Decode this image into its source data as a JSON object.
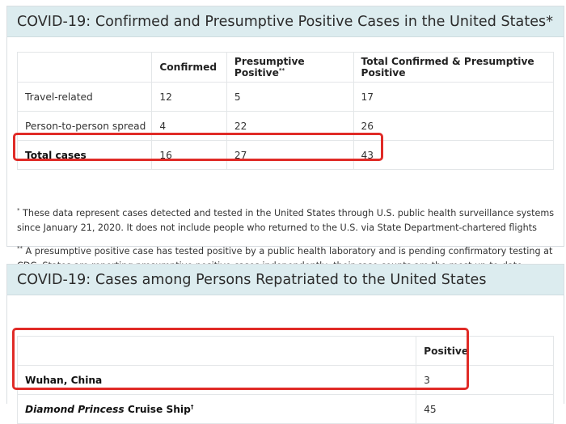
{
  "section1": {
    "title": "COVID-19: Confirmed and Presumptive Positive Cases in the United States*",
    "columns": [
      "",
      "Confirmed",
      "Presumptive Positive",
      "Total Confirmed & Presumptive Positive"
    ],
    "presumptive_marker": "**",
    "rows": [
      {
        "label": "Travel-related",
        "confirmed": "12",
        "presumptive": "5",
        "total": "17"
      },
      {
        "label": "Person-to-person spread",
        "confirmed": "4",
        "presumptive": "22",
        "total": "26"
      },
      {
        "label": "Total cases",
        "confirmed": "16",
        "presumptive": "27",
        "total": "43"
      }
    ],
    "footnote1_marker": "*",
    "footnote1": " These data represent cases detected and tested in the United States through U.S. public health surveillance systems since January 21, 2020. It does not include people who returned to the U.S. via State Department-chartered flights",
    "footnote2_marker": "**",
    "footnote2": " A presumptive positive case has tested positive by a public health laboratory and is pending confirmatory testing at CDC. States are reporting presumptive positive cases independently; their case counts are the most up-to-date."
  },
  "section2": {
    "title": "COVID-19: Cases among Persons Repatriated to the United States",
    "columns": [
      "",
      "Positive"
    ],
    "rows": [
      {
        "label": "Wuhan, China",
        "positive": "3"
      },
      {
        "label_italic": "Diamond Princess",
        "label_rest": " Cruise Ship",
        "marker": "†",
        "positive": "45"
      }
    ]
  },
  "colors": {
    "header_bg": "#dcecef",
    "highlight": "#e02b27"
  }
}
